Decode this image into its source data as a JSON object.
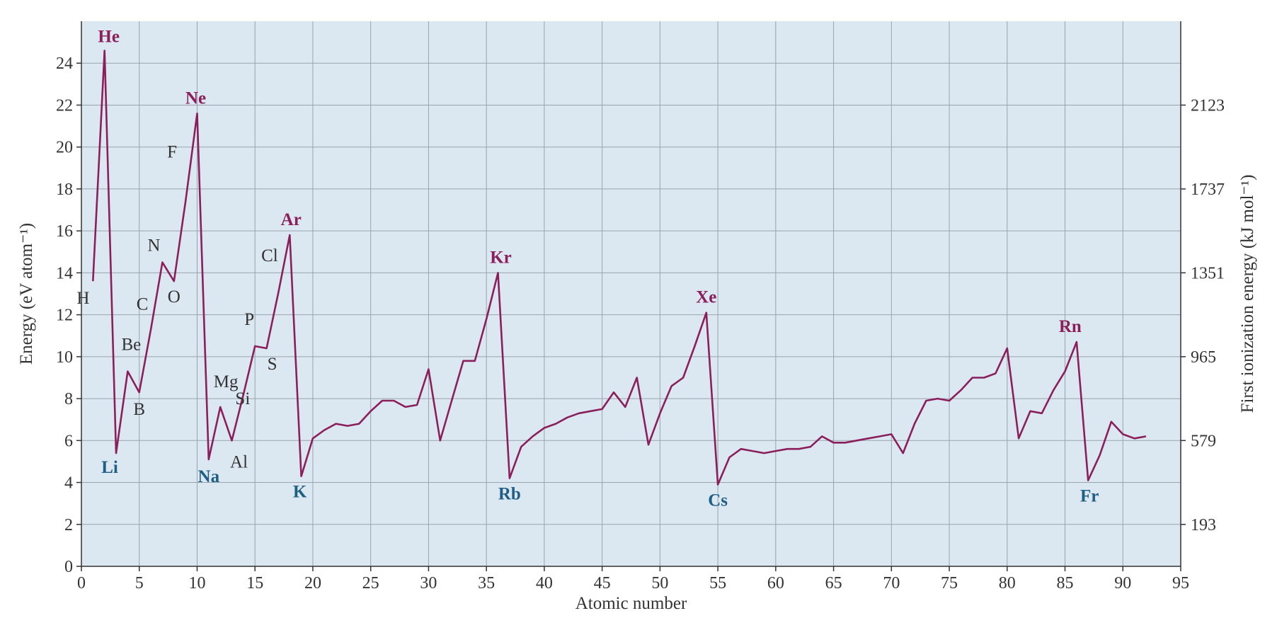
{
  "colors": {
    "plot_background": "#dce8f1",
    "grid": "#9aa3ad",
    "axis": "#333333",
    "series_line": "#8a1f5c",
    "noble_gas_label": "#8a1f5c",
    "alkali_label": "#1f5f86",
    "plain_label": "#333333"
  },
  "chart_data": {
    "type": "line",
    "xlabel": "Atomic number",
    "ylabel": "Energy (eV atom⁻¹)",
    "y2label": "First ionization energy (kJ mol⁻¹)",
    "xlim": [
      0,
      95
    ],
    "ylim": [
      0,
      26
    ],
    "grid": true,
    "x_ticks": [
      0,
      5,
      10,
      15,
      20,
      25,
      30,
      35,
      40,
      45,
      50,
      55,
      60,
      65,
      70,
      75,
      80,
      85,
      90,
      95
    ],
    "y_ticks": [
      0,
      2,
      4,
      6,
      8,
      10,
      12,
      14,
      16,
      18,
      20,
      22,
      24
    ],
    "y2_ticks": [
      {
        "label": "193",
        "at_y": 2
      },
      {
        "label": "579",
        "at_y": 6
      },
      {
        "label": "965",
        "at_y": 10
      },
      {
        "label": "1351",
        "at_y": 14
      },
      {
        "label": "1737",
        "at_y": 18
      },
      {
        "label": "2123",
        "at_y": 22
      }
    ],
    "series": [
      {
        "points": [
          [
            1,
            13.6
          ],
          [
            2,
            24.6
          ],
          [
            3,
            5.4
          ],
          [
            4,
            9.3
          ],
          [
            5,
            8.3
          ],
          [
            6,
            11.3
          ],
          [
            7,
            14.5
          ],
          [
            8,
            13.6
          ],
          [
            9,
            17.4
          ],
          [
            10,
            21.6
          ],
          [
            11,
            5.1
          ],
          [
            12,
            7.6
          ],
          [
            13,
            6.0
          ],
          [
            14,
            8.2
          ],
          [
            15,
            10.5
          ],
          [
            16,
            10.4
          ],
          [
            17,
            13.0
          ],
          [
            18,
            15.8
          ],
          [
            19,
            4.3
          ],
          [
            20,
            6.1
          ],
          [
            21,
            6.5
          ],
          [
            22,
            6.8
          ],
          [
            23,
            6.7
          ],
          [
            24,
            6.8
          ],
          [
            25,
            7.4
          ],
          [
            26,
            7.9
          ],
          [
            27,
            7.9
          ],
          [
            28,
            7.6
          ],
          [
            29,
            7.7
          ],
          [
            30,
            9.4
          ],
          [
            31,
            6.0
          ],
          [
            32,
            7.9
          ],
          [
            33,
            9.8
          ],
          [
            34,
            9.8
          ],
          [
            35,
            11.8
          ],
          [
            36,
            14.0
          ],
          [
            37,
            4.2
          ],
          [
            38,
            5.7
          ],
          [
            39,
            6.2
          ],
          [
            40,
            6.6
          ],
          [
            41,
            6.8
          ],
          [
            42,
            7.1
          ],
          [
            43,
            7.3
          ],
          [
            44,
            7.4
          ],
          [
            45,
            7.5
          ],
          [
            46,
            8.3
          ],
          [
            47,
            7.6
          ],
          [
            48,
            9.0
          ],
          [
            49,
            5.8
          ],
          [
            50,
            7.3
          ],
          [
            51,
            8.6
          ],
          [
            52,
            9.0
          ],
          [
            53,
            10.5
          ],
          [
            54,
            12.1
          ],
          [
            55,
            3.9
          ],
          [
            56,
            5.2
          ],
          [
            57,
            5.6
          ],
          [
            58,
            5.5
          ],
          [
            59,
            5.4
          ],
          [
            60,
            5.5
          ],
          [
            61,
            5.6
          ],
          [
            62,
            5.6
          ],
          [
            63,
            5.7
          ],
          [
            64,
            6.2
          ],
          [
            65,
            5.9
          ],
          [
            66,
            5.9
          ],
          [
            67,
            6.0
          ],
          [
            68,
            6.1
          ],
          [
            69,
            6.2
          ],
          [
            70,
            6.3
          ],
          [
            71,
            5.4
          ],
          [
            72,
            6.8
          ],
          [
            73,
            7.9
          ],
          [
            74,
            8.0
          ],
          [
            75,
            7.9
          ],
          [
            76,
            8.4
          ],
          [
            77,
            9.0
          ],
          [
            78,
            9.0
          ],
          [
            79,
            9.2
          ],
          [
            80,
            10.4
          ],
          [
            81,
            6.1
          ],
          [
            82,
            7.4
          ],
          [
            83,
            7.3
          ],
          [
            84,
            8.4
          ],
          [
            85,
            9.3
          ],
          [
            86,
            10.7
          ],
          [
            87,
            4.1
          ],
          [
            88,
            5.3
          ],
          [
            89,
            6.9
          ],
          [
            90,
            6.3
          ],
          [
            91,
            6.1
          ],
          [
            92,
            6.2
          ]
        ]
      }
    ],
    "annotations": [
      {
        "text": "H",
        "x": 1,
        "y": 13.6,
        "style": "plain"
      },
      {
        "text": "He",
        "x": 2,
        "y": 24.6,
        "style": "noble"
      },
      {
        "text": "Li",
        "x": 3,
        "y": 5.4,
        "style": "alkali"
      },
      {
        "text": "Be",
        "x": 4,
        "y": 9.3,
        "style": "plain"
      },
      {
        "text": "B",
        "x": 5,
        "y": 8.3,
        "style": "plain"
      },
      {
        "text": "C",
        "x": 6,
        "y": 11.3,
        "style": "plain"
      },
      {
        "text": "N",
        "x": 7,
        "y": 14.5,
        "style": "plain"
      },
      {
        "text": "O",
        "x": 8,
        "y": 13.6,
        "style": "plain"
      },
      {
        "text": "F",
        "x": 9,
        "y": 17.4,
        "style": "plain"
      },
      {
        "text": "Ne",
        "x": 10,
        "y": 21.6,
        "style": "noble"
      },
      {
        "text": "Na",
        "x": 11,
        "y": 5.1,
        "style": "alkali"
      },
      {
        "text": "Mg",
        "x": 12,
        "y": 7.6,
        "style": "plain"
      },
      {
        "text": "Al",
        "x": 13,
        "y": 6.0,
        "style": "plain"
      },
      {
        "text": "Si",
        "x": 14,
        "y": 8.2,
        "style": "plain"
      },
      {
        "text": "P",
        "x": 15,
        "y": 10.5,
        "style": "plain"
      },
      {
        "text": "S",
        "x": 16,
        "y": 10.4,
        "style": "plain"
      },
      {
        "text": "Cl",
        "x": 17,
        "y": 13.0,
        "style": "plain"
      },
      {
        "text": "Ar",
        "x": 18,
        "y": 15.8,
        "style": "noble"
      },
      {
        "text": "K",
        "x": 19,
        "y": 4.3,
        "style": "alkali"
      },
      {
        "text": "Kr",
        "x": 36,
        "y": 14.0,
        "style": "noble"
      },
      {
        "text": "Rb",
        "x": 37,
        "y": 4.2,
        "style": "alkali"
      },
      {
        "text": "Xe",
        "x": 54,
        "y": 12.1,
        "style": "noble"
      },
      {
        "text": "Cs",
        "x": 55,
        "y": 3.9,
        "style": "alkali"
      },
      {
        "text": "Rn",
        "x": 86,
        "y": 10.7,
        "style": "noble"
      },
      {
        "text": "Fr",
        "x": 87,
        "y": 4.1,
        "style": "alkali"
      }
    ]
  }
}
